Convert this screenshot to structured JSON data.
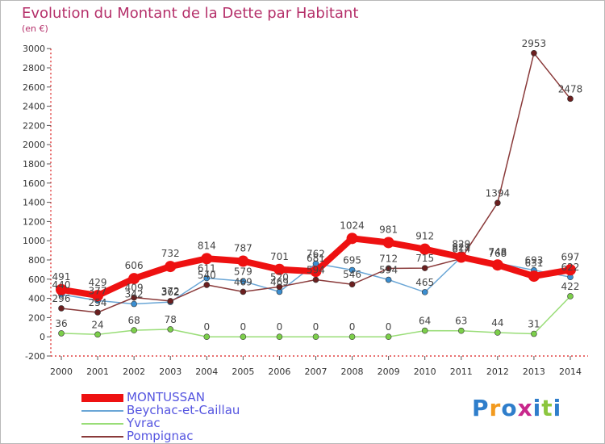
{
  "header": {
    "title": "Evolution du Montant de la Dette par Habitant",
    "unit_label": "(en €)"
  },
  "logo": {
    "text": "Proxiti",
    "colors": [
      "#2f7ecb",
      "#f29a1e",
      "#2f7ecb",
      "#c8288c",
      "#2f7ecb",
      "#8cc63e",
      "#2f7ecb"
    ]
  },
  "chart_data": {
    "type": "line",
    "title": "Evolution du Montant de la Dette par Habitant",
    "ylabel": "(en €)",
    "xlabel": "",
    "x": [
      "2000",
      "2001",
      "2002",
      "2003",
      "2004",
      "2005",
      "2006",
      "2007",
      "2008",
      "2009",
      "2010",
      "2011",
      "2012",
      "2013",
      "2014"
    ],
    "ylim": [
      -200,
      3000
    ],
    "yticks": [
      -200,
      0,
      200,
      400,
      600,
      800,
      1000,
      1200,
      1400,
      1600,
      1800,
      2000,
      2200,
      2400,
      2600,
      2800,
      3000
    ],
    "grid": false,
    "legend_position": "bottom-left",
    "series": [
      {
        "name": "Yvrac",
        "color": "#99dd77",
        "marker_color": "#7ccf4a",
        "line_width": 1.5,
        "values": [
          36,
          24,
          68,
          78,
          0,
          0,
          0,
          0,
          0,
          0,
          64,
          63,
          44,
          31,
          422
        ],
        "labels": [
          "36",
          "24",
          "68",
          "78",
          "0",
          "0",
          "0",
          "0",
          "0",
          "0",
          "64",
          "63",
          "44",
          "31",
          "422"
        ]
      },
      {
        "name": "Beychac-et-Caillau",
        "color": "#6aa6d6",
        "marker_color": "#3b8ed0",
        "line_width": 1.5,
        "values": [
          440,
          377,
          342,
          362,
          611,
          579,
          469,
          762,
          695,
          594,
          465,
          829,
          768,
          693,
          622
        ],
        "labels": [
          "440",
          "377",
          "342",
          "362",
          "611",
          "579",
          "469",
          "762",
          "695",
          "594",
          "465",
          "829",
          "768",
          "693",
          "622"
        ]
      },
      {
        "name": "Pompignac",
        "color": "#8a3a3a",
        "marker_color": "#6b1f1f",
        "line_width": 1.5,
        "values": [
          296,
          254,
          409,
          372,
          540,
          469,
          520,
          594,
          546,
          712,
          715,
          814,
          1394,
          2953,
          2478
        ],
        "labels": [
          "296",
          "254",
          "409",
          "372",
          "540",
          "469",
          "520",
          "594",
          "546",
          "712",
          "715",
          "814",
          "1394",
          "2953",
          "2478"
        ]
      },
      {
        "name": "MONTUSSAN",
        "color": "#ee1111",
        "marker_color": "#ee1111",
        "line_width": 8,
        "values": [
          491,
          429,
          606,
          732,
          814,
          787,
          701,
          681,
          1024,
          981,
          912,
          829,
          748,
          631,
          697
        ],
        "labels": [
          "491",
          "429",
          "606",
          "732",
          "814",
          "787",
          "701",
          "681",
          "1024",
          "981",
          "912",
          "829",
          "748",
          "631",
          "697"
        ]
      }
    ]
  },
  "legend": {
    "items": [
      {
        "label": "MONTUSSAN",
        "color": "#ee1111"
      },
      {
        "label": "Beychac-et-Caillau",
        "color": "#6aa6d6"
      },
      {
        "label": "Yvrac",
        "color": "#99dd77"
      },
      {
        "label": "Pompignac",
        "color": "#8a3a3a"
      }
    ]
  }
}
